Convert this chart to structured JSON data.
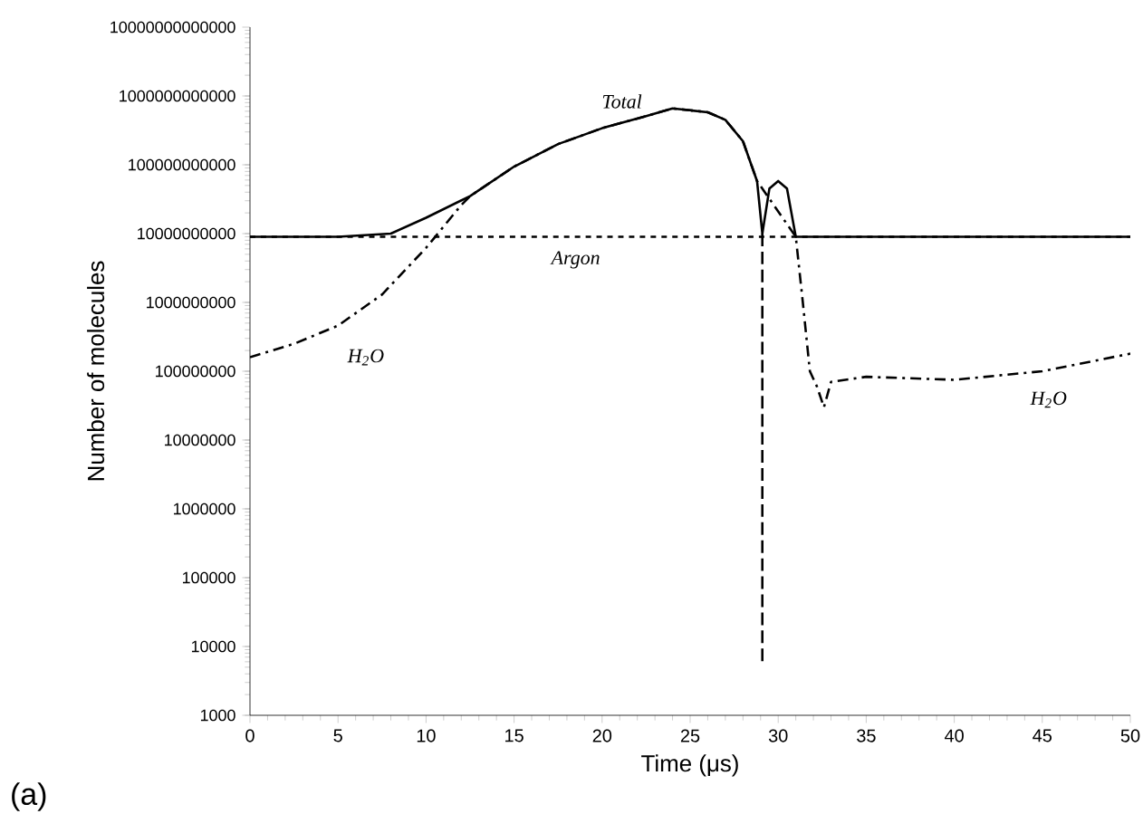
{
  "chart_data": {
    "type": "line",
    "xlabel": "Time (μs)",
    "ylabel": "Number of molecules",
    "log": "y",
    "xlim": [
      0,
      50
    ],
    "xticks": [
      0,
      5,
      10,
      15,
      20,
      25,
      30,
      35,
      40,
      45,
      50
    ],
    "ylim": [
      1000,
      10000000000000
    ],
    "yticks": [
      1000,
      10000,
      100000,
      1000000,
      10000000,
      100000000,
      1000000000,
      10000000000,
      100000000000,
      1000000000000,
      10000000000000
    ],
    "grid": false,
    "legend": false,
    "series": [
      {
        "name": "Total",
        "color": "#000000",
        "line_style": "solid",
        "x": [
          0,
          5,
          8,
          10,
          12.5,
          15,
          17.5,
          20,
          22.5,
          24,
          26,
          27,
          28,
          28.8,
          29.1,
          29.5,
          30,
          30.5,
          31,
          35,
          40,
          45,
          50
        ],
        "values": [
          9000000000,
          9000000000,
          10000000000,
          17000000000,
          35000000000,
          94000000000,
          200000000000,
          340000000000,
          510000000000,
          660000000000,
          580000000000,
          450000000000,
          220000000000,
          58000000000,
          10000000000,
          45000000000,
          58000000000,
          45000000000,
          9000000000,
          9000000000,
          9000000000,
          9000000000,
          9000000000
        ]
      },
      {
        "name": "Argon",
        "color": "#000000",
        "line_style": "dotted",
        "x": [
          0,
          50
        ],
        "values": [
          9000000000,
          9000000000
        ]
      },
      {
        "name": "H$_{2}$O",
        "color": "#000000",
        "line_style": "dashdot",
        "x": [
          0,
          2.5,
          5,
          7.5,
          10,
          12,
          12.5,
          15,
          17.5,
          20,
          22.5,
          24,
          26,
          27,
          28,
          28.8,
          31,
          31.4,
          31.8,
          32.2,
          32.6,
          33,
          35,
          40,
          45,
          50
        ],
        "values": [
          160000000,
          250000000,
          460000000,
          1300000000,
          6200000000,
          26000000000,
          35000000000,
          94000000000,
          200000000000,
          340000000000,
          510000000000,
          660000000000,
          580000000000,
          450000000000,
          220000000000,
          58000000000,
          9000000000,
          1000000000,
          100000000,
          60000000,
          30000000,
          70000000,
          83000000,
          75000000,
          100000000,
          180000000
        ]
      },
      {
        "color": "#000000",
        "line_style": "dashed",
        "x": [
          29.1,
          29.1
        ],
        "values": [
          10000000000,
          5500
        ]
      }
    ],
    "annotations": [
      "(a)"
    ]
  }
}
